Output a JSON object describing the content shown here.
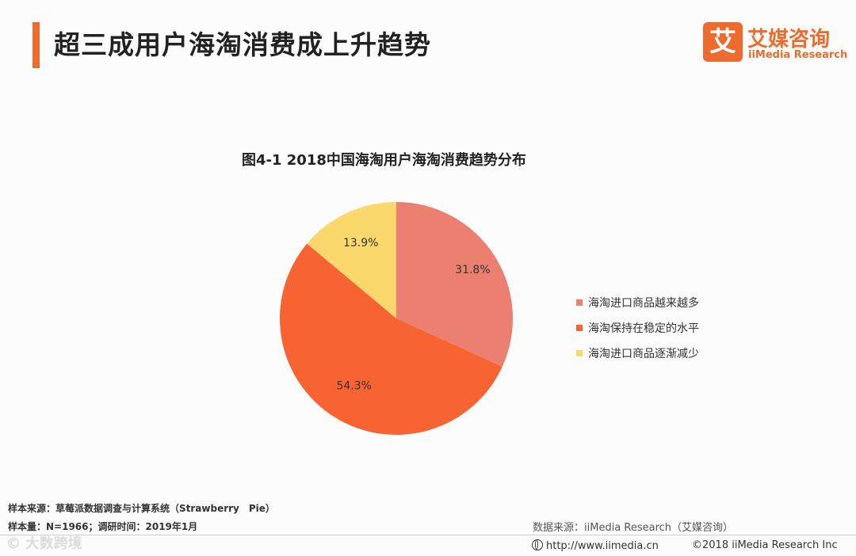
{
  "header": {
    "title": "超三成用户海淘消费成上升趋势"
  },
  "logo": {
    "mark": "艾",
    "cn": "艾媒咨询",
    "en": "iiMedia Research"
  },
  "colors": {
    "accent": "#ee6a2e",
    "series_1": "#ec8070",
    "series_2": "#f76432",
    "series_3": "#fbd86c"
  },
  "chart_data": {
    "type": "pie",
    "title": "图4-1 2018中国海淘用户海淘消费趋势分布",
    "categories": [
      "海淘进口商品越来越多",
      "海淘保持在稳定的水平",
      "海淘进口商品逐渐减少"
    ],
    "values": [
      31.8,
      54.3,
      13.9
    ],
    "data_labels": [
      "31.8%",
      "54.3%",
      "13.9%"
    ],
    "colors": [
      "#ec8070",
      "#f76432",
      "#fbd86c"
    ],
    "legend_position": "right"
  },
  "footer": {
    "sample_source": "样本来源：草莓派数据调查与计算系统（Strawberry　Pie）",
    "sample_size": "样本量：N=1966；调研时间：2019年1月",
    "data_source": "数据来源：iiMedia Research（艾媒咨询）",
    "url": "http://www.iimedia.cn",
    "copyright": "©2018 iiMedia Research Inc",
    "watermark": "© 大数跨境"
  }
}
